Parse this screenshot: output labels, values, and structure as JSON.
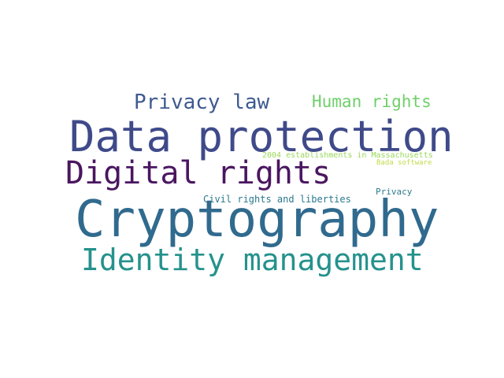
{
  "words": {
    "privacy_law": {
      "text": "Privacy law",
      "color": "#3e5a8f"
    },
    "human_rights": {
      "text": "Human rights",
      "color": "#6fcf6a"
    },
    "data_protection": {
      "text": "Data protection",
      "color": "#3f4a8a"
    },
    "establishments_2004": {
      "text": "2004 establishments in Massachusetts",
      "color": "#9bd85c"
    },
    "bada_software": {
      "text": "Bada software",
      "color": "#c3d94a"
    },
    "digital_rights": {
      "text": "Digital rights",
      "color": "#4a1660"
    },
    "privacy": {
      "text": "Privacy",
      "color": "#2c7b8e"
    },
    "civil_rights": {
      "text": "Civil rights and liberties",
      "color": "#2a788e"
    },
    "cryptography": {
      "text": "Cryptography",
      "color": "#306a8e"
    },
    "identity_management": {
      "text": "Identity management",
      "color": "#25928c"
    }
  }
}
